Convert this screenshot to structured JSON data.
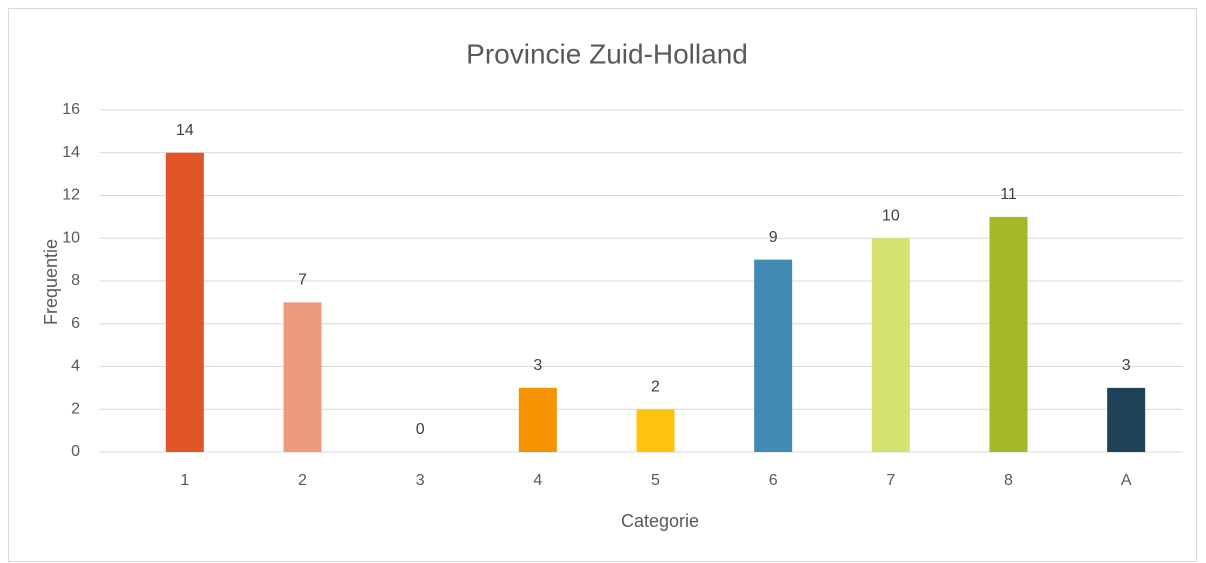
{
  "chart_data": {
    "type": "bar",
    "title": "Provincie Zuid-Holland",
    "x_label": "Categorie",
    "y_label": "Frequentie",
    "categories": [
      "1",
      "2",
      "3",
      "4",
      "5",
      "6",
      "7",
      "8",
      "A"
    ],
    "values": [
      14,
      7,
      0,
      3,
      2,
      9,
      10,
      11,
      3
    ],
    "colors": [
      "#e15527",
      "#ec9a7c",
      "#7f7f7f",
      "#f59300",
      "#ffc20e",
      "#418ab3",
      "#d5e26f",
      "#a6b727",
      "#1f4259"
    ],
    "ylim": [
      0,
      16
    ],
    "yticks": [
      0,
      2,
      4,
      6,
      8,
      10,
      12,
      14,
      16
    ],
    "grid": true
  }
}
